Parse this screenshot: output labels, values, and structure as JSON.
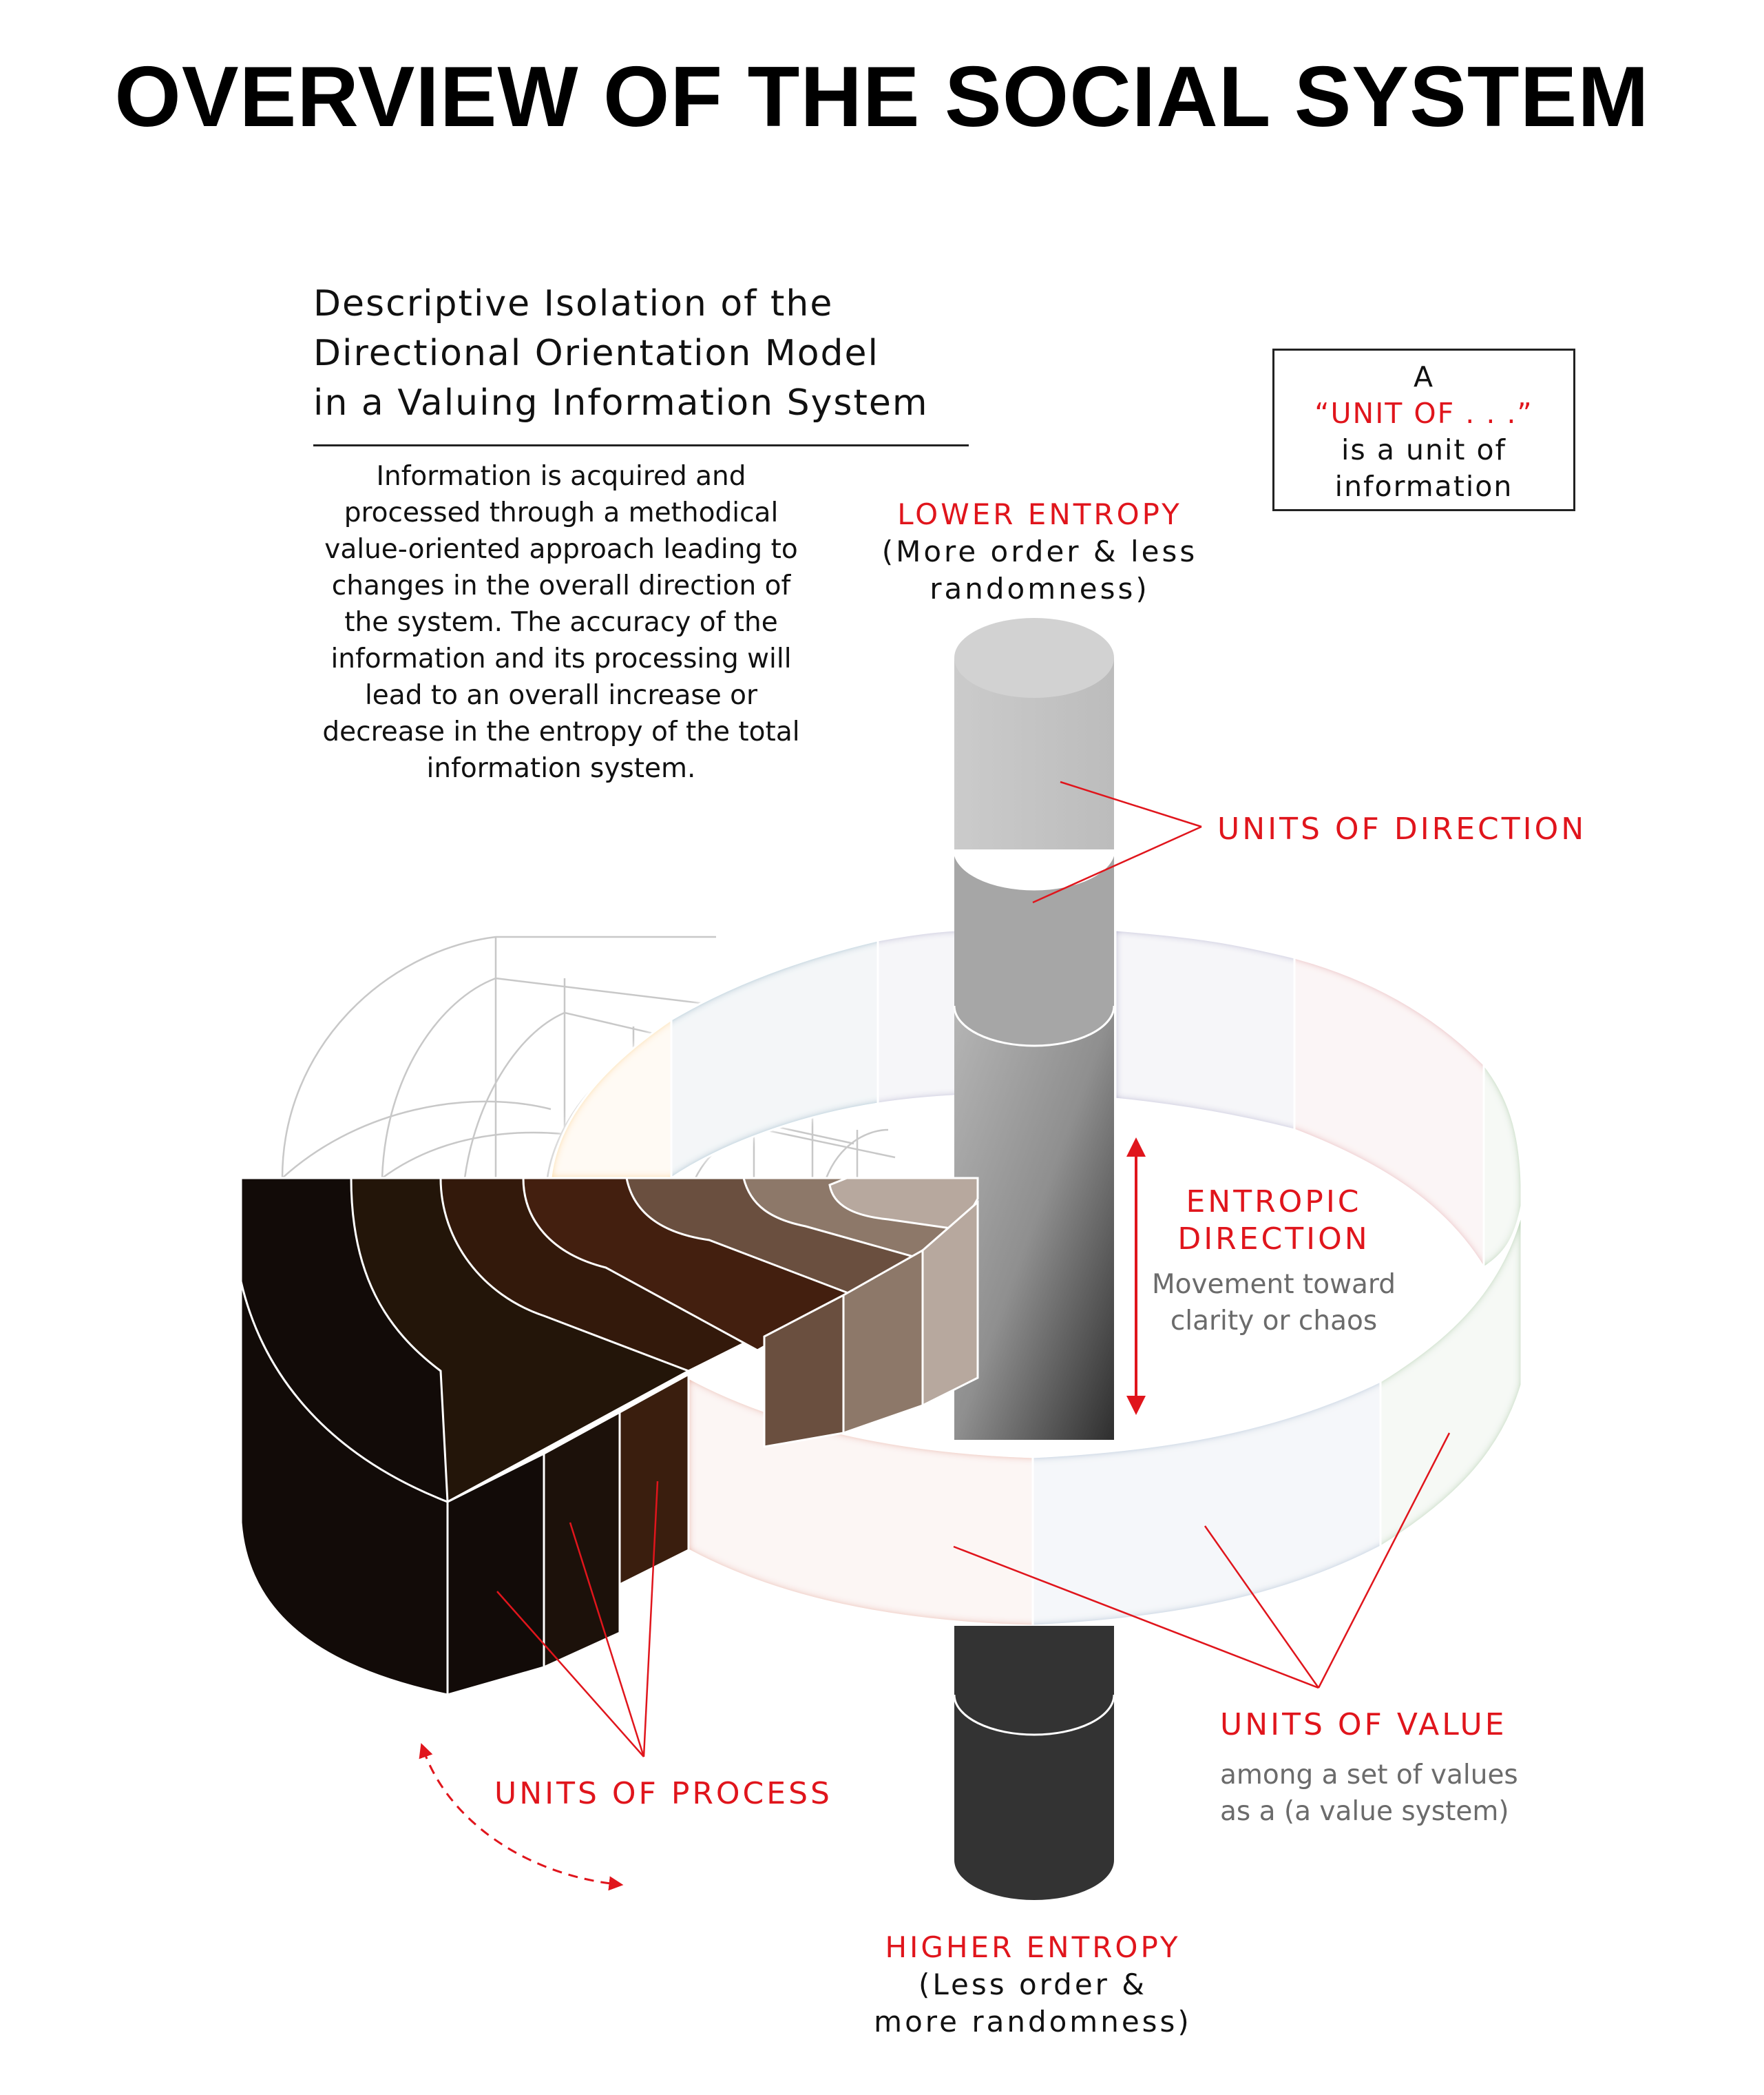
{
  "title": "OVERVIEW OF THE SOCIAL SYSTEM",
  "subtitle_lines": [
    "Descriptive Isolation of the",
    "Directional Orientation Model",
    "in a Valuing Information System"
  ],
  "intro_text": "Information is acquired and processed through a methodical value-oriented approach leading to changes in the overall direction of the system. The accuracy of the information and its processing will lead to an overall increase or decrease in the entropy of the total information system.",
  "note_box": {
    "line1": "A",
    "line2": "“UNIT OF . . .”",
    "line3": "is a unit of",
    "line4": "information"
  },
  "lower_entropy": {
    "label": "LOWER ENTROPY",
    "desc_line1": "(More order & less",
    "desc_line2": "randomness)"
  },
  "higher_entropy": {
    "label": "HIGHER ENTROPY",
    "desc_line1": "(Less order &",
    "desc_line2": "more randomness)"
  },
  "units_of_direction": "UNITS OF DIRECTION",
  "entropic_direction": {
    "line1": "ENTROPIC",
    "line2": "DIRECTION",
    "desc": "Movement toward clarity or chaos"
  },
  "units_of_value": {
    "label": "UNITS OF VALUE",
    "desc_line1": "among a set of values",
    "desc_line2": "as a (a value system)"
  },
  "units_of_process": "UNITS OF PROCESS",
  "colors": {
    "accent_red": "#e0151c",
    "ring_yellow": "#fcc500",
    "ring_teal": "#0087aa",
    "ring_purple": "#8480b8",
    "ring_pink": "#d96c73",
    "ring_green": "#72b063",
    "ring_blue": "#6593bc",
    "ring_orange": "#dd7548",
    "process_browns": [
      "#120b08",
      "#231509",
      "#33190b",
      "#431f0f",
      "#6a4f3f",
      "#8d7869",
      "#b7a89e"
    ],
    "column_greys": [
      "#c3c3c3",
      "#a8a8a8",
      "#909090",
      "#333333"
    ]
  }
}
